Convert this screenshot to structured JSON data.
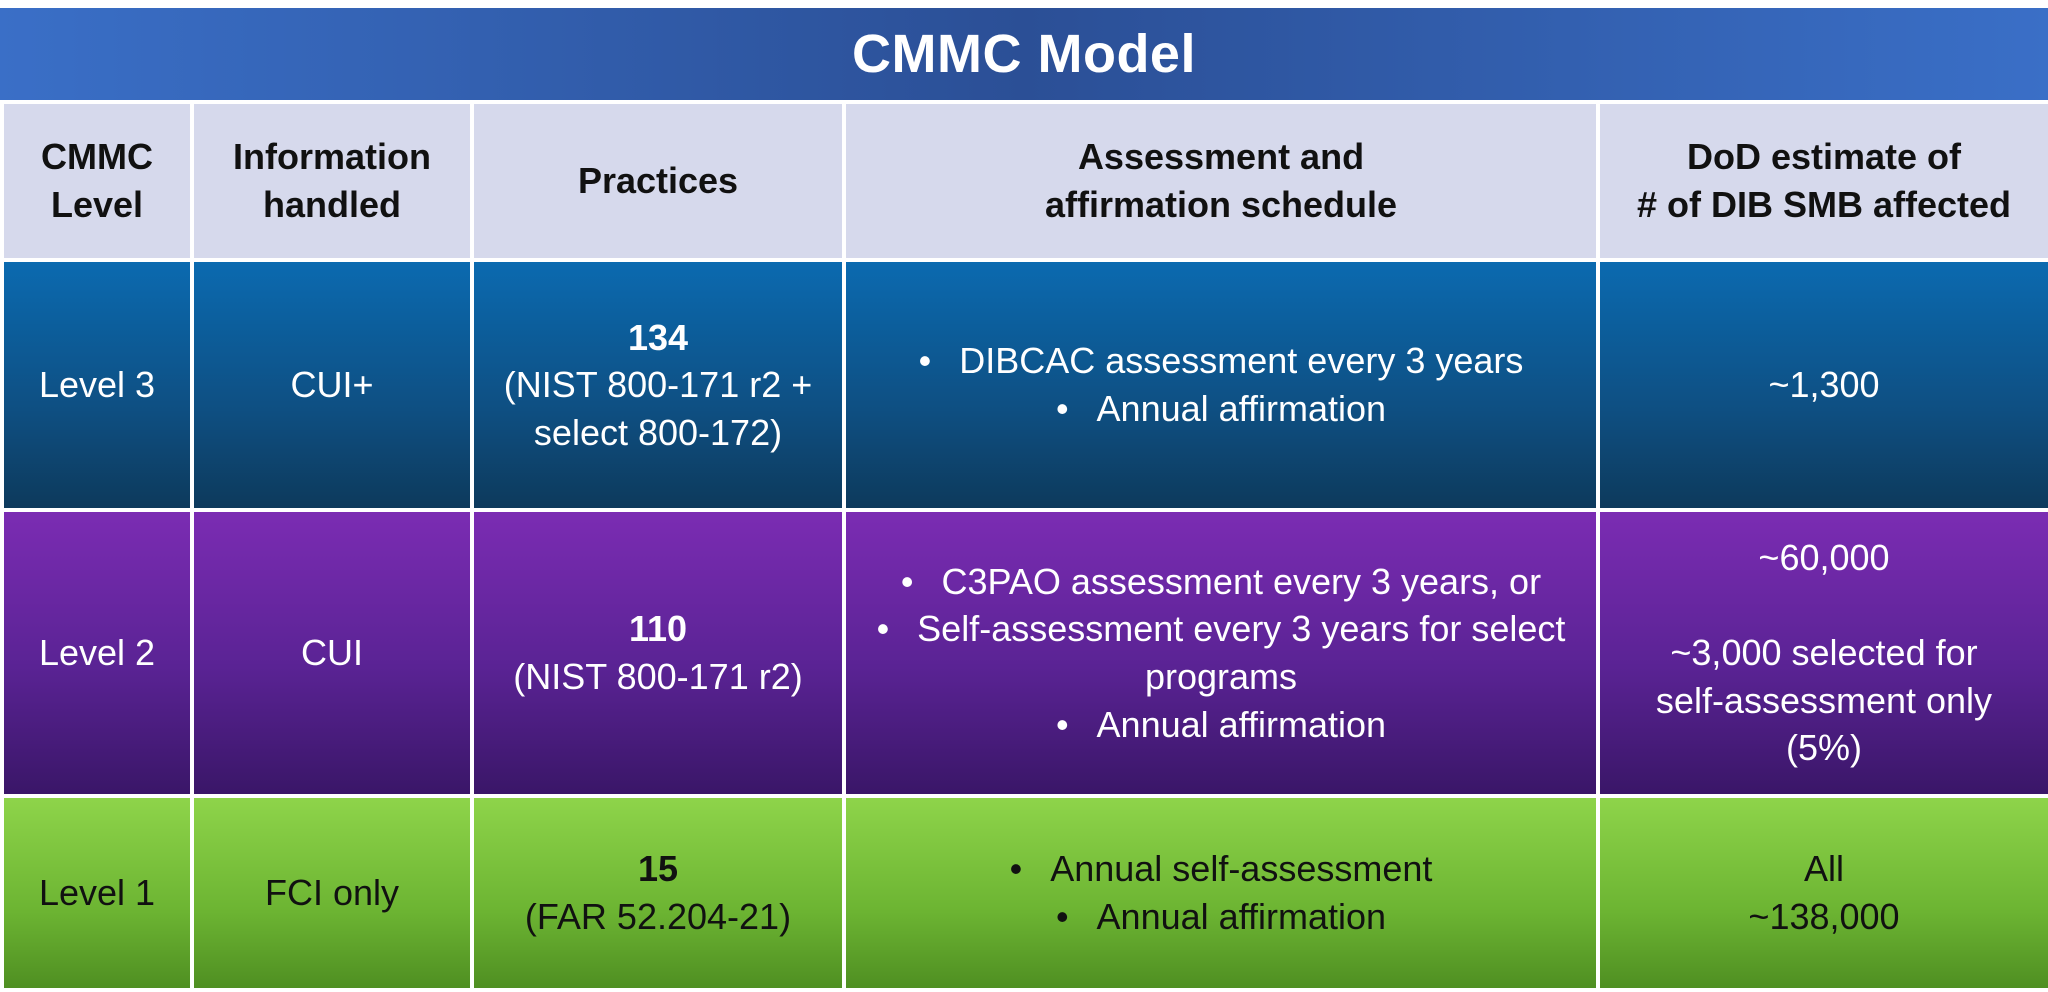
{
  "title": "CMMC Model",
  "headers": [
    "CMMC Level",
    "Information handled",
    "Practices",
    "Assessment and affirmation schedule",
    "DoD estimate of # of DIB SMB affected"
  ],
  "header_lines": [
    [
      "CMMC",
      "Level"
    ],
    [
      "Information",
      "handled"
    ],
    [
      "Practices"
    ],
    [
      "Assessment and",
      "affirmation schedule"
    ],
    [
      "DoD estimate of",
      "# of DIB SMB affected"
    ]
  ],
  "rows": [
    {
      "level": "Level 3",
      "info": "CUI+",
      "practices_count": "134",
      "practices_source_lines": [
        "(NIST 800-171 r2 +",
        "select 800-172)"
      ],
      "schedule": [
        "DIBCAC assessment every 3 years",
        "Annual affirmation"
      ],
      "estimate": [
        "~1,300"
      ]
    },
    {
      "level": "Level 2",
      "info": "CUI",
      "practices_count": "110",
      "practices_source_lines": [
        "(NIST 800-171 r2)"
      ],
      "schedule": [
        "C3PAO assessment every 3 years, or",
        "Self-assessment every 3 years for select programs",
        "Annual affirmation"
      ],
      "estimate_primary": "~60,000",
      "estimate_secondary": [
        "~3,000 selected for",
        "self-assessment only",
        "(5%)"
      ]
    },
    {
      "level": "Level 1",
      "info": "FCI only",
      "practices_count": "15",
      "practices_source_lines": [
        "(FAR 52.204-21)"
      ],
      "schedule": [
        "Annual self-assessment",
        "Annual affirmation"
      ],
      "estimate": [
        "All",
        "~138,000"
      ]
    }
  ],
  "colors": {
    "title_bar": "#2b4f96",
    "header_bg": "#d6d9ec",
    "level3": "#0e4f82",
    "level2": "#5a2394",
    "level1": "#6cb432"
  }
}
